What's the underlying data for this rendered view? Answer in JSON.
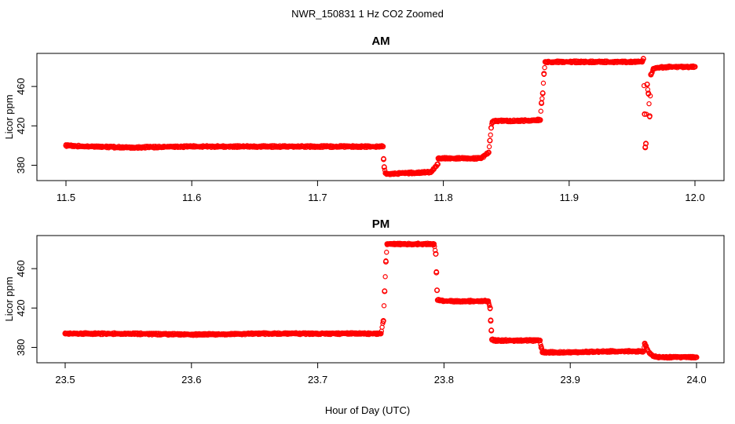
{
  "figure": {
    "title": "NWR_150831  1 Hz CO2 Zoomed",
    "xlabel": "Hour of Day (UTC)"
  },
  "colors": {
    "points": "#ff0000",
    "axis": "#000000"
  },
  "chart_data": [
    {
      "type": "scatter",
      "title": "AM",
      "ylabel": "Licor ppm",
      "xlim": [
        11.5,
        12.0
      ],
      "ylim": [
        366,
        492
      ],
      "xticks": [
        11.5,
        11.6,
        11.7,
        11.8,
        11.9,
        12.0
      ],
      "xtick_labels": [
        "11.5",
        "11.6",
        "11.7",
        "11.8",
        "11.9",
        "12.0"
      ],
      "yticks": [
        380,
        420,
        460
      ],
      "ytick_labels": [
        "380",
        "420",
        "460"
      ],
      "grid": false,
      "legend": "none",
      "series": [
        {
          "x": [
            11.5,
            11.52,
            11.55,
            11.6,
            11.62,
            11.65,
            11.7,
            11.72,
            11.752,
            11.7525,
            11.753,
            11.754,
            11.755,
            11.77,
            11.79,
            11.7955,
            11.796,
            11.8,
            11.81,
            11.83,
            11.836,
            11.837,
            11.838,
            11.839,
            11.84,
            11.86,
            11.877,
            11.878,
            11.879,
            11.88,
            11.881,
            11.9,
            11.92,
            11.94,
            11.958,
            11.959,
            11.96,
            11.9605,
            11.961,
            11.962,
            11.963,
            11.964,
            11.965,
            11.967,
            11.97,
            11.98,
            12.0
          ],
          "y": [
            400,
            399,
            398,
            399,
            399,
            399,
            399,
            399,
            399,
            386,
            378,
            372,
            371,
            372,
            373,
            381,
            387,
            387,
            387,
            387,
            393,
            405,
            418,
            424,
            425,
            425,
            426,
            443,
            453,
            473,
            485,
            485,
            485,
            485,
            485,
            488,
            432,
            398,
            402,
            462,
            453,
            430,
            472,
            478,
            479,
            480,
            480
          ]
        }
      ]
    },
    {
      "type": "scatter",
      "title": "PM",
      "ylabel": "Licor ppm",
      "xlim": [
        23.5,
        24.0
      ],
      "ylim": [
        366,
        492
      ],
      "xticks": [
        23.5,
        23.6,
        23.7,
        23.8,
        23.9,
        24.0
      ],
      "xtick_labels": [
        "23.5",
        "23.6",
        "23.7",
        "23.8",
        "23.9",
        "24.0"
      ],
      "yticks": [
        380,
        420,
        460
      ],
      "ytick_labels": [
        "380",
        "420",
        "460"
      ],
      "grid": false,
      "legend": "none",
      "series": [
        {
          "x": [
            23.5,
            23.55,
            23.6,
            23.65,
            23.7,
            23.75,
            23.752,
            23.753,
            23.754,
            23.755,
            23.756,
            23.76,
            23.78,
            23.792,
            23.7935,
            23.794,
            23.7945,
            23.795,
            23.8,
            23.82,
            23.835,
            23.8365,
            23.837,
            23.8375,
            23.838,
            23.84,
            23.86,
            23.876,
            23.877,
            23.878,
            23.88,
            23.9,
            23.93,
            23.958,
            23.959,
            23.96,
            23.961,
            23.963,
            23.966,
            23.97,
            23.98,
            24.0
          ],
          "y": [
            394,
            394,
            393,
            394,
            394,
            394,
            407,
            437,
            467,
            485,
            485,
            485,
            485,
            485,
            475,
            456,
            438,
            428,
            427,
            427,
            427,
            420,
            407,
            397,
            388,
            387,
            387,
            387,
            380,
            375,
            375,
            375,
            376,
            376,
            384,
            381,
            378,
            374,
            371,
            370,
            370,
            370
          ]
        }
      ]
    }
  ]
}
